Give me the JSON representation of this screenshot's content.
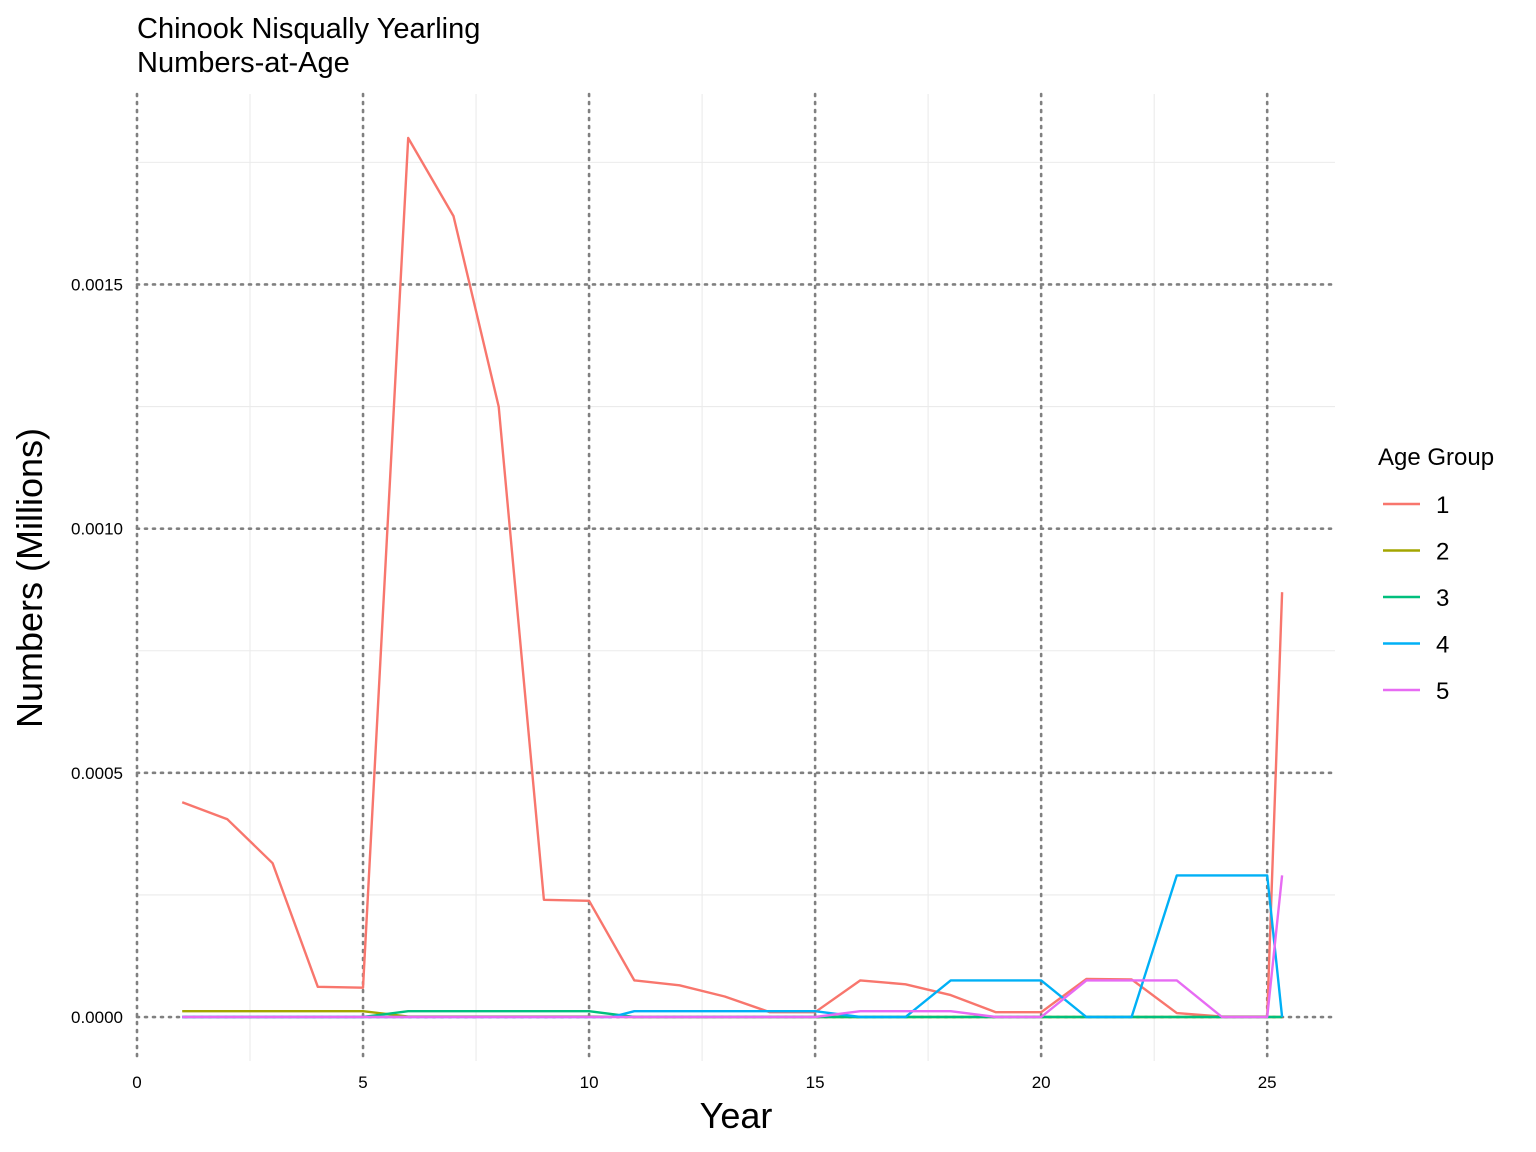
{
  "chart_data": {
    "type": "line",
    "title": "Chinook Nisqually Yearling",
    "subtitle": "Numbers-at-Age",
    "xlabel": "Year",
    "ylabel": "Numbers (Millions)",
    "xlim": [
      0,
      26.5
    ],
    "ylim": [
      -9e-05,
      0.00189
    ],
    "x_ticks": [
      0,
      5,
      10,
      15,
      20,
      25
    ],
    "x_tick_labels": [
      "0",
      "5",
      "10",
      "15",
      "20",
      "25"
    ],
    "y_ticks": [
      0,
      0.0005,
      0.001,
      0.0015
    ],
    "y_tick_labels": [
      "0.0000",
      "0.0005",
      "0.0010",
      "0.0015"
    ],
    "grid": "major dotted, minor solid light",
    "legend": {
      "title": "Age Group",
      "position": "right"
    },
    "series": [
      {
        "name": "1",
        "color": "#F8766D",
        "x": [
          1,
          2,
          3,
          4,
          5,
          6,
          7,
          8,
          9,
          10,
          11,
          12,
          13,
          14,
          15,
          16,
          17,
          18,
          19,
          20,
          21,
          22,
          23,
          24,
          25,
          25.33
        ],
        "y": [
          0.00044,
          0.000405,
          0.000315,
          6.2e-05,
          6e-05,
          0.0018,
          0.00164,
          0.00125,
          0.00024,
          0.000238,
          7.5e-05,
          6.5e-05,
          4.2e-05,
          1e-05,
          1e-05,
          7.5e-05,
          6.7e-05,
          4.5e-05,
          1e-05,
          1e-05,
          7.8e-05,
          7.7e-05,
          8e-06,
          1e-06,
          1e-06,
          0.00087
        ]
      },
      {
        "name": "2",
        "color": "#A3A500",
        "x": [
          1,
          2,
          3,
          4,
          5,
          6,
          7,
          8,
          9,
          10,
          11,
          12,
          13,
          14,
          15,
          16,
          17,
          18,
          19,
          20,
          21,
          22,
          23,
          24,
          25,
          25.33
        ],
        "y": [
          1.2e-05,
          1.2e-05,
          1.2e-05,
          1.2e-05,
          1.2e-05,
          1e-06,
          1e-06,
          1e-06,
          1e-06,
          1e-06,
          0,
          0,
          0,
          0,
          0,
          0,
          0,
          0,
          0,
          0,
          0,
          0,
          0,
          0,
          0,
          0
        ]
      },
      {
        "name": "3",
        "color": "#00BF7D",
        "x": [
          1,
          2,
          3,
          4,
          5,
          6,
          7,
          8,
          9,
          10,
          11,
          12,
          13,
          14,
          15,
          16,
          17,
          18,
          19,
          20,
          21,
          22,
          23,
          24,
          25,
          25.33
        ],
        "y": [
          0,
          0,
          0,
          0,
          0,
          1.2e-05,
          1.2e-05,
          1.2e-05,
          1.2e-05,
          1.2e-05,
          0,
          0,
          0,
          0,
          0,
          0,
          0,
          0,
          0,
          0,
          0,
          0,
          0,
          0,
          0,
          0
        ]
      },
      {
        "name": "4",
        "color": "#00B0F6",
        "x": [
          1,
          2,
          3,
          4,
          5,
          6,
          7,
          8,
          9,
          10,
          10.5,
          11,
          12,
          13,
          14,
          15,
          16,
          17,
          18,
          19,
          20,
          21,
          22,
          23,
          24,
          25,
          25.33
        ],
        "y": [
          0,
          0,
          0,
          0,
          0,
          0,
          0,
          0,
          0,
          0,
          0,
          1.2e-05,
          1.2e-05,
          1.2e-05,
          1.2e-05,
          1.2e-05,
          0,
          0,
          7.5e-05,
          7.5e-05,
          7.5e-05,
          0,
          0,
          0.00029,
          0.00029,
          0.00029,
          0
        ]
      },
      {
        "name": "5",
        "color": "#E76BF3",
        "x": [
          1,
          2,
          3,
          4,
          5,
          6,
          7,
          8,
          9,
          10,
          11,
          12,
          13,
          14,
          15,
          16,
          17,
          18,
          19,
          20,
          21,
          22,
          23,
          24,
          25,
          25.33
        ],
        "y": [
          0,
          0,
          0,
          0,
          0,
          0,
          0,
          0,
          0,
          0,
          0,
          0,
          0,
          0,
          0,
          1.2e-05,
          1.2e-05,
          1.2e-05,
          0,
          0,
          7.5e-05,
          7.5e-05,
          7.5e-05,
          0,
          0,
          0.00029
        ]
      }
    ]
  }
}
